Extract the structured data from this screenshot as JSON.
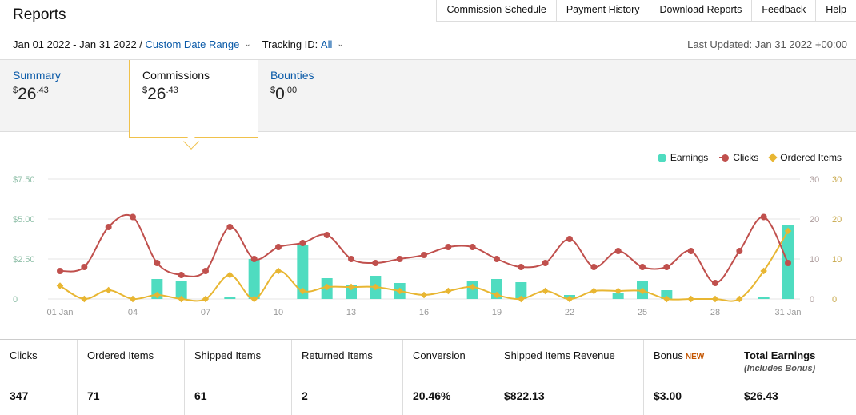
{
  "header": {
    "title": "Reports"
  },
  "topnav": [
    "Commission Schedule",
    "Payment History",
    "Download Reports",
    "Feedback",
    "Help"
  ],
  "filters": {
    "date_range": "Jan 01 2022 - Jan 31 2022 /",
    "custom_label": "Custom Date Range",
    "tracking_label": "Tracking ID:",
    "tracking_value": "All"
  },
  "last_updated": "Last Updated: Jan 31 2022 +00:00",
  "tabs": [
    {
      "label": "Summary",
      "currency": "$",
      "whole": "26",
      "cents": ".43"
    },
    {
      "label": "Commissions",
      "currency": "$",
      "whole": "26",
      "cents": ".43"
    },
    {
      "label": "Bounties",
      "currency": "$",
      "whole": "0",
      "cents": ".00"
    }
  ],
  "legend": {
    "earnings": "Earnings",
    "clicks": "Clicks",
    "ordered": "Ordered Items"
  },
  "colors": {
    "earnings": "#4fdcc0",
    "clicks": "#c0504d",
    "ordered": "#e8b632",
    "link": "#0a5aa8"
  },
  "chart_data": {
    "type": "bar+line",
    "x_ticks": [
      "01 Jan",
      "04",
      "07",
      "10",
      "13",
      "16",
      "19",
      "22",
      "25",
      "28",
      "31 Jan"
    ],
    "y_left_ticks": [
      "$7.50",
      "$5.00",
      "$2.50",
      "0"
    ],
    "y_right_ticks_1": [
      "30",
      "20",
      "10",
      "0"
    ],
    "y_right_ticks_2": [
      "30",
      "20",
      "10",
      "0"
    ],
    "ylim_left": [
      0,
      7.5
    ],
    "ylim_right": [
      0,
      30
    ],
    "series": [
      {
        "name": "Earnings",
        "kind": "bar",
        "axis": "left",
        "values": [
          0,
          0,
          0,
          0,
          1.25,
          1.1,
          0,
          0.15,
          2.5,
          0,
          3.4,
          1.3,
          0.9,
          1.45,
          1.0,
          0,
          0,
          1.1,
          1.25,
          1.05,
          0,
          0.25,
          0,
          0.35,
          1.1,
          0.55,
          0,
          0,
          0,
          0.15,
          4.6
        ]
      },
      {
        "name": "Clicks",
        "kind": "line",
        "axis": "right",
        "values": [
          7,
          8,
          18,
          20.5,
          9,
          6,
          7,
          18,
          10,
          13,
          14,
          16,
          10,
          9,
          10,
          11,
          13,
          13,
          10,
          8,
          9,
          15,
          8,
          12,
          8,
          8,
          12,
          4,
          12,
          20.5,
          9
        ]
      },
      {
        "name": "Ordered Items",
        "kind": "line",
        "axis": "right",
        "values": [
          3.3,
          0,
          2.2,
          0,
          1,
          0,
          0,
          6,
          0,
          7,
          2,
          3,
          3,
          3,
          2,
          1,
          2,
          3,
          1,
          0,
          2,
          0,
          2,
          2,
          2,
          0,
          0,
          0,
          0,
          7,
          17
        ]
      }
    ]
  },
  "stats": [
    {
      "label": "Clicks",
      "value": "347"
    },
    {
      "label": "Ordered Items",
      "value": "71"
    },
    {
      "label": "Shipped Items",
      "value": "61"
    },
    {
      "label": "Returned Items",
      "value": "2"
    },
    {
      "label": "Conversion",
      "value": "20.46%"
    },
    {
      "label": "Shipped Items Revenue",
      "value": "$822.13"
    },
    {
      "label": "Bonus",
      "badge": "NEW",
      "value": "$3.00"
    },
    {
      "label": "Total Earnings",
      "sub": "(Includes Bonus)",
      "value": "$26.43"
    }
  ]
}
